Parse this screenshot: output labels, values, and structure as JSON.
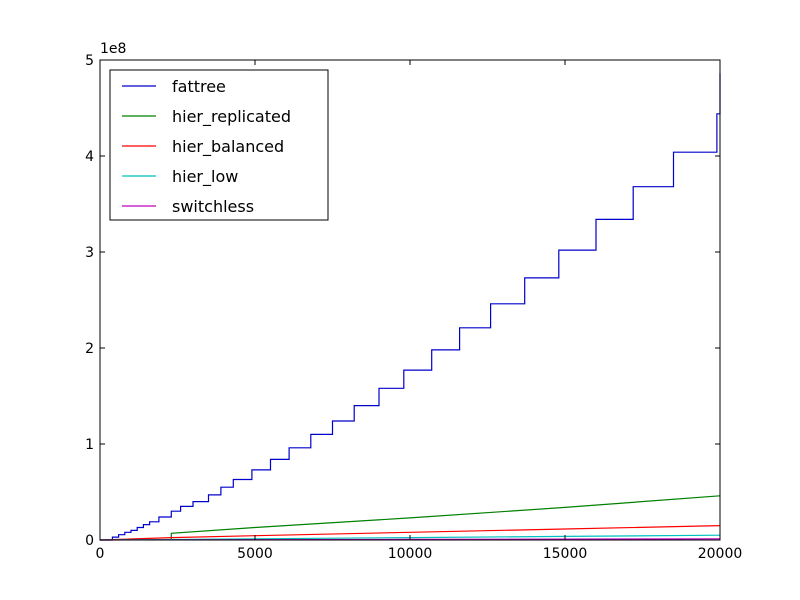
{
  "chart_data": {
    "type": "line",
    "title": "",
    "xlabel": "",
    "ylabel": "",
    "y_offset_label": "1e8",
    "xlim": [
      0,
      20000
    ],
    "ylim": [
      0,
      5
    ],
    "x_ticks": [
      0,
      5000,
      10000,
      15000,
      20000
    ],
    "x_tick_labels": [
      "0",
      "5000",
      "10000",
      "15000",
      "20000"
    ],
    "y_ticks": [
      0,
      1,
      2,
      3,
      4,
      5
    ],
    "y_tick_labels": [
      "0",
      "1",
      "2",
      "3",
      "4",
      "5"
    ],
    "grid": false,
    "legend_position": "top-left",
    "series": [
      {
        "name": "fattree",
        "color": "#0000cc",
        "style": "step",
        "x": [
          0,
          400,
          600,
          800,
          1000,
          1200,
          1400,
          1600,
          1900,
          2300,
          2600,
          3000,
          3500,
          3900,
          4300,
          4900,
          5500,
          6100,
          6800,
          7500,
          8200,
          9000,
          9800,
          10700,
          11600,
          12600,
          13700,
          14800,
          16000,
          17200,
          18500,
          19900,
          20000
        ],
        "y": [
          0,
          0.03,
          0.055,
          0.08,
          0.1,
          0.13,
          0.16,
          0.19,
          0.24,
          0.3,
          0.35,
          0.4,
          0.47,
          0.55,
          0.63,
          0.73,
          0.84,
          0.96,
          1.1,
          1.24,
          1.4,
          1.58,
          1.77,
          1.98,
          2.21,
          2.46,
          2.73,
          3.02,
          3.34,
          3.68,
          4.04,
          4.44,
          4.86
        ]
      },
      {
        "name": "hier_replicated",
        "color": "#008000",
        "style": "line",
        "x": [
          2300,
          2300,
          5000,
          10000,
          15000,
          20000
        ],
        "y": [
          0,
          0.07,
          0.13,
          0.23,
          0.34,
          0.46
        ]
      },
      {
        "name": "hier_balanced",
        "color": "#ff0000",
        "style": "line",
        "x": [
          0,
          2300,
          5000,
          10000,
          15000,
          20000
        ],
        "y": [
          0,
          0.025,
          0.045,
          0.08,
          0.115,
          0.15
        ]
      },
      {
        "name": "hier_low",
        "color": "#00bfbf",
        "style": "line",
        "x": [
          0,
          5000,
          10000,
          15000,
          20000
        ],
        "y": [
          0,
          0.012,
          0.025,
          0.037,
          0.05
        ]
      },
      {
        "name": "switchless",
        "color": "#bf00bf",
        "style": "line",
        "x": [
          0,
          5000,
          10000,
          15000,
          20000
        ],
        "y": [
          0,
          0.003,
          0.006,
          0.009,
          0.012
        ]
      }
    ]
  }
}
